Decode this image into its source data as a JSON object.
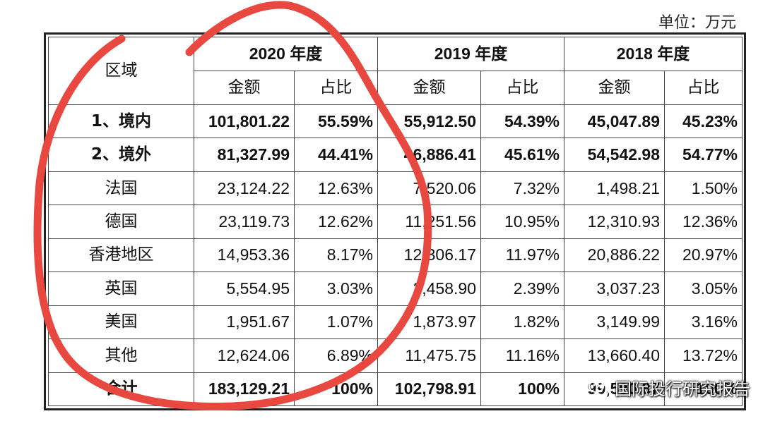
{
  "unit_label": "单位：万元",
  "table": {
    "region_header": "区域",
    "years": [
      "2020 年度",
      "2019 年度",
      "2018 年度"
    ],
    "sub_headers": [
      "金额",
      "占比"
    ],
    "rows": [
      {
        "region": "1、境内",
        "bold": true,
        "values": [
          "101,801.22",
          "55.59%",
          "55,912.50",
          "54.39%",
          "45,047.89",
          "45.23%"
        ]
      },
      {
        "region": "2、境外",
        "bold": true,
        "values": [
          "81,327.99",
          "44.41%",
          "46,886.41",
          "45.61%",
          "54,542.98",
          "54.77%"
        ]
      },
      {
        "region": "法国",
        "bold": false,
        "values": [
          "23,124.22",
          "12.63%",
          "7,520.06",
          "7.32%",
          "1,498.21",
          "1.50%"
        ]
      },
      {
        "region": "德国",
        "bold": false,
        "values": [
          "23,119.73",
          "12.62%",
          "11,251.56",
          "10.95%",
          "12,310.93",
          "12.36%"
        ]
      },
      {
        "region": "香港地区",
        "bold": false,
        "values": [
          "14,953.36",
          "8.17%",
          "12,306.17",
          "11.97%",
          "20,886.22",
          "20.97%"
        ]
      },
      {
        "region": "英国",
        "bold": false,
        "values": [
          "5,554.95",
          "3.03%",
          "2,458.90",
          "2.39%",
          "3,037.23",
          "3.05%"
        ]
      },
      {
        "region": "美国",
        "bold": false,
        "values": [
          "1,951.67",
          "1.07%",
          "1,873.97",
          "1.82%",
          "3,149.99",
          "3.16%"
        ]
      },
      {
        "region": "其他",
        "bold": false,
        "values": [
          "12,624.06",
          "6.89%",
          "11,475.75",
          "11.16%",
          "13,660.40",
          "13.72%"
        ]
      },
      {
        "region": "合计",
        "bold": true,
        "values": [
          "183,129.21",
          "100%",
          "102,798.91",
          "100%",
          "99,590.87",
          "100%"
        ]
      }
    ]
  },
  "watermark": {
    "text": "国际投行研究报告",
    "icon": "wechat-icon"
  },
  "annotation": {
    "color": "#e8483f"
  }
}
